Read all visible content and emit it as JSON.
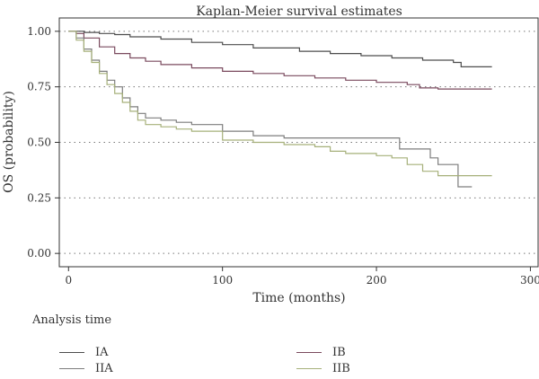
{
  "chart_data": {
    "type": "line",
    "title": "Kaplan-Meier survival estimates",
    "xlabel": "Time (months)",
    "ylabel": "OS (probability)",
    "xlim": [
      -6,
      305
    ],
    "ylim": [
      -0.06,
      1.06
    ],
    "x_ticks": [
      0,
      100,
      200,
      300
    ],
    "x_tick_labels": [
      "0",
      "100",
      "200",
      "300"
    ],
    "y_ticks": [
      0,
      0.25,
      0.5,
      0.75,
      1.0
    ],
    "y_tick_labels": [
      "0.00",
      "0.25",
      "0.50",
      "0.75",
      "1.00"
    ],
    "grid": "horizontal dotted",
    "legend_title": "Analysis time",
    "legend_placement": "bottom",
    "series": [
      {
        "name": "IA",
        "color": "#4d4d4d",
        "x": [
          0,
          10,
          20,
          30,
          40,
          60,
          80,
          100,
          120,
          150,
          170,
          190,
          210,
          230,
          250,
          255,
          275
        ],
        "y": [
          1.0,
          0.995,
          0.99,
          0.985,
          0.975,
          0.965,
          0.95,
          0.94,
          0.925,
          0.91,
          0.9,
          0.89,
          0.88,
          0.87,
          0.86,
          0.84,
          0.84
        ]
      },
      {
        "name": "IB",
        "color": "#7a4a5e",
        "x": [
          0,
          5,
          10,
          20,
          30,
          40,
          50,
          60,
          80,
          100,
          120,
          140,
          160,
          180,
          200,
          220,
          228,
          240,
          275
        ],
        "y": [
          1.0,
          0.99,
          0.97,
          0.93,
          0.9,
          0.88,
          0.865,
          0.85,
          0.835,
          0.82,
          0.81,
          0.8,
          0.79,
          0.78,
          0.77,
          0.76,
          0.745,
          0.74,
          0.74
        ]
      },
      {
        "name": "IIA",
        "color": "#7d7d7d",
        "x": [
          0,
          5,
          10,
          15,
          20,
          25,
          30,
          35,
          40,
          45,
          50,
          60,
          70,
          80,
          100,
          120,
          140,
          160,
          180,
          200,
          210,
          215,
          225,
          235,
          240,
          250,
          253,
          262
        ],
        "y": [
          1.0,
          0.97,
          0.92,
          0.87,
          0.82,
          0.78,
          0.75,
          0.7,
          0.66,
          0.63,
          0.61,
          0.6,
          0.59,
          0.58,
          0.55,
          0.53,
          0.52,
          0.52,
          0.52,
          0.52,
          0.52,
          0.47,
          0.47,
          0.43,
          0.4,
          0.4,
          0.3,
          0.3
        ]
      },
      {
        "name": "IIB",
        "color": "#a6b07a",
        "x": [
          0,
          5,
          10,
          15,
          20,
          25,
          30,
          35,
          40,
          45,
          50,
          60,
          70,
          80,
          100,
          120,
          140,
          160,
          170,
          180,
          200,
          210,
          220,
          230,
          240,
          260,
          275
        ],
        "y": [
          1.0,
          0.96,
          0.91,
          0.86,
          0.81,
          0.76,
          0.72,
          0.68,
          0.64,
          0.6,
          0.58,
          0.57,
          0.56,
          0.55,
          0.51,
          0.5,
          0.49,
          0.48,
          0.46,
          0.45,
          0.44,
          0.43,
          0.4,
          0.37,
          0.35,
          0.35,
          0.35
        ]
      }
    ]
  }
}
